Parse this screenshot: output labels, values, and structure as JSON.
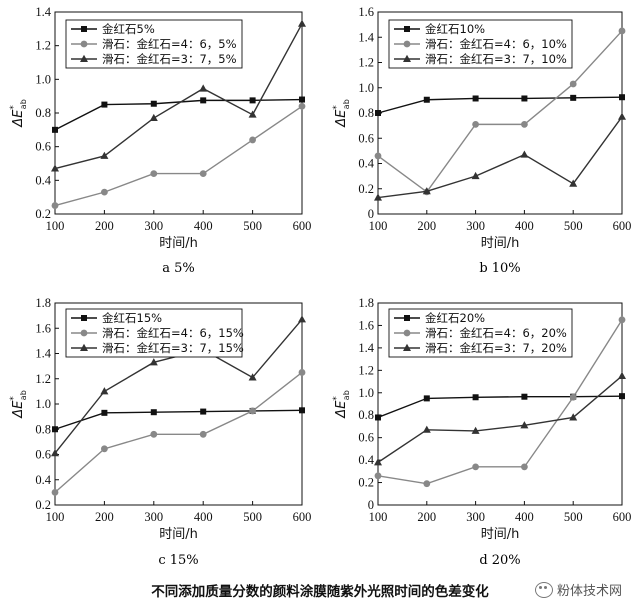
{
  "figure_title": "不同添加质量分数的颜料涂膜随紫外光照时间的色差变化",
  "watermark": "粉体技术网",
  "chart_data": [
    {
      "type": "line",
      "caption": "a 5%",
      "xlabel": "时间/h",
      "ylabel_main": "ΔE",
      "ylabel_sup": "*",
      "ylabel_sub": "ab",
      "x": [
        100,
        200,
        300,
        400,
        500,
        600
      ],
      "xlim": [
        100,
        600
      ],
      "ylim": [
        0.2,
        1.4
      ],
      "yticks": [
        0.2,
        0.4,
        0.6,
        0.8,
        1.0,
        1.2,
        1.4
      ],
      "ytick_labels": [
        "0.2",
        "0.4",
        "0.6",
        "0.8",
        "1.0",
        "1.2",
        "1.4"
      ],
      "legend_position": "top-left",
      "series": [
        {
          "name": "金红石5%",
          "marker": "square",
          "color": "#111111",
          "values": [
            0.7,
            0.85,
            0.855,
            0.875,
            0.875,
            0.88
          ]
        },
        {
          "name": "滑石：金红石=4：6，5%",
          "marker": "circle",
          "color": "#888888",
          "values": [
            0.25,
            0.33,
            0.44,
            0.44,
            0.64,
            0.84
          ]
        },
        {
          "name": "滑石：金红石=3：7，5%",
          "marker": "triangle",
          "color": "#333333",
          "values": [
            0.47,
            0.545,
            0.77,
            0.945,
            0.79,
            1.33
          ]
        }
      ]
    },
    {
      "type": "line",
      "caption": "b 10%",
      "xlabel": "时间/h",
      "ylabel_main": "ΔE",
      "ylabel_sup": "*",
      "ylabel_sub": "ab",
      "x": [
        100,
        200,
        300,
        400,
        500,
        600
      ],
      "xlim": [
        100,
        600
      ],
      "ylim": [
        0.0,
        1.6
      ],
      "yticks": [
        0.0,
        0.2,
        0.4,
        0.6,
        0.8,
        1.0,
        1.2,
        1.4,
        1.6
      ],
      "ytick_labels": [
        "0",
        "0.2",
        "0.4",
        "0.6",
        "0.8",
        "1.0",
        "1.2",
        "1.4",
        "1.6"
      ],
      "legend_position": "top-left",
      "series": [
        {
          "name": "金红石10%",
          "marker": "square",
          "color": "#111111",
          "values": [
            0.8,
            0.905,
            0.915,
            0.915,
            0.92,
            0.925
          ]
        },
        {
          "name": "滑石：金红石=4：6，10%",
          "marker": "circle",
          "color": "#888888",
          "values": [
            0.46,
            0.175,
            0.71,
            0.71,
            1.03,
            1.45
          ]
        },
        {
          "name": "滑石：金红石=3：7，10%",
          "marker": "triangle",
          "color": "#333333",
          "values": [
            0.13,
            0.18,
            0.3,
            0.47,
            0.24,
            0.77
          ]
        }
      ]
    },
    {
      "type": "line",
      "caption": "c 15%",
      "xlabel": "时间/h",
      "ylabel_main": "ΔE",
      "ylabel_sup": "*",
      "ylabel_sub": "ab",
      "x": [
        100,
        200,
        300,
        400,
        500,
        600
      ],
      "xlim": [
        100,
        600
      ],
      "ylim": [
        0.2,
        1.8
      ],
      "yticks": [
        0.2,
        0.4,
        0.6,
        0.8,
        1.0,
        1.2,
        1.4,
        1.6,
        1.8
      ],
      "ytick_labels": [
        "0.2",
        "0.4",
        "0.6",
        "0.8",
        "1.0",
        "1.2",
        "1.4",
        "1.6",
        "1.8"
      ],
      "legend_position": "top-left",
      "series": [
        {
          "name": "金红石15%",
          "marker": "square",
          "color": "#111111",
          "values": [
            0.8,
            0.93,
            0.935,
            0.94,
            0.945,
            0.95
          ]
        },
        {
          "name": "滑石：金红石=4：6，15%",
          "marker": "circle",
          "color": "#888888",
          "values": [
            0.3,
            0.645,
            0.76,
            0.76,
            0.945,
            1.25
          ]
        },
        {
          "name": "滑石：金红石=3：7，15%",
          "marker": "triangle",
          "color": "#333333",
          "values": [
            0.61,
            1.1,
            1.33,
            1.43,
            1.21,
            1.67
          ]
        }
      ]
    },
    {
      "type": "line",
      "caption": "d 20%",
      "xlabel": "时间/h",
      "ylabel_main": "ΔE",
      "ylabel_sup": "*",
      "ylabel_sub": "ab",
      "x": [
        100,
        200,
        300,
        400,
        500,
        600
      ],
      "xlim": [
        100,
        600
      ],
      "ylim": [
        0.0,
        1.8
      ],
      "yticks": [
        0.0,
        0.2,
        0.4,
        0.6,
        0.8,
        1.0,
        1.2,
        1.4,
        1.6,
        1.8
      ],
      "ytick_labels": [
        "0",
        "0.2",
        "0.4",
        "0.6",
        "0.8",
        "1.0",
        "1.2",
        "1.4",
        "1.6",
        "1.8"
      ],
      "legend_position": "top-left",
      "series": [
        {
          "name": "金红石20%",
          "marker": "square",
          "color": "#111111",
          "values": [
            0.78,
            0.95,
            0.96,
            0.965,
            0.965,
            0.97
          ]
        },
        {
          "name": "滑石：金红石=4：6，20%",
          "marker": "circle",
          "color": "#888888",
          "values": [
            0.26,
            0.19,
            0.34,
            0.34,
            0.96,
            1.65
          ]
        },
        {
          "name": "滑石：金红石=3：7，20%",
          "marker": "triangle",
          "color": "#333333",
          "values": [
            0.38,
            0.67,
            0.66,
            0.71,
            0.78,
            1.15
          ]
        }
      ]
    }
  ]
}
